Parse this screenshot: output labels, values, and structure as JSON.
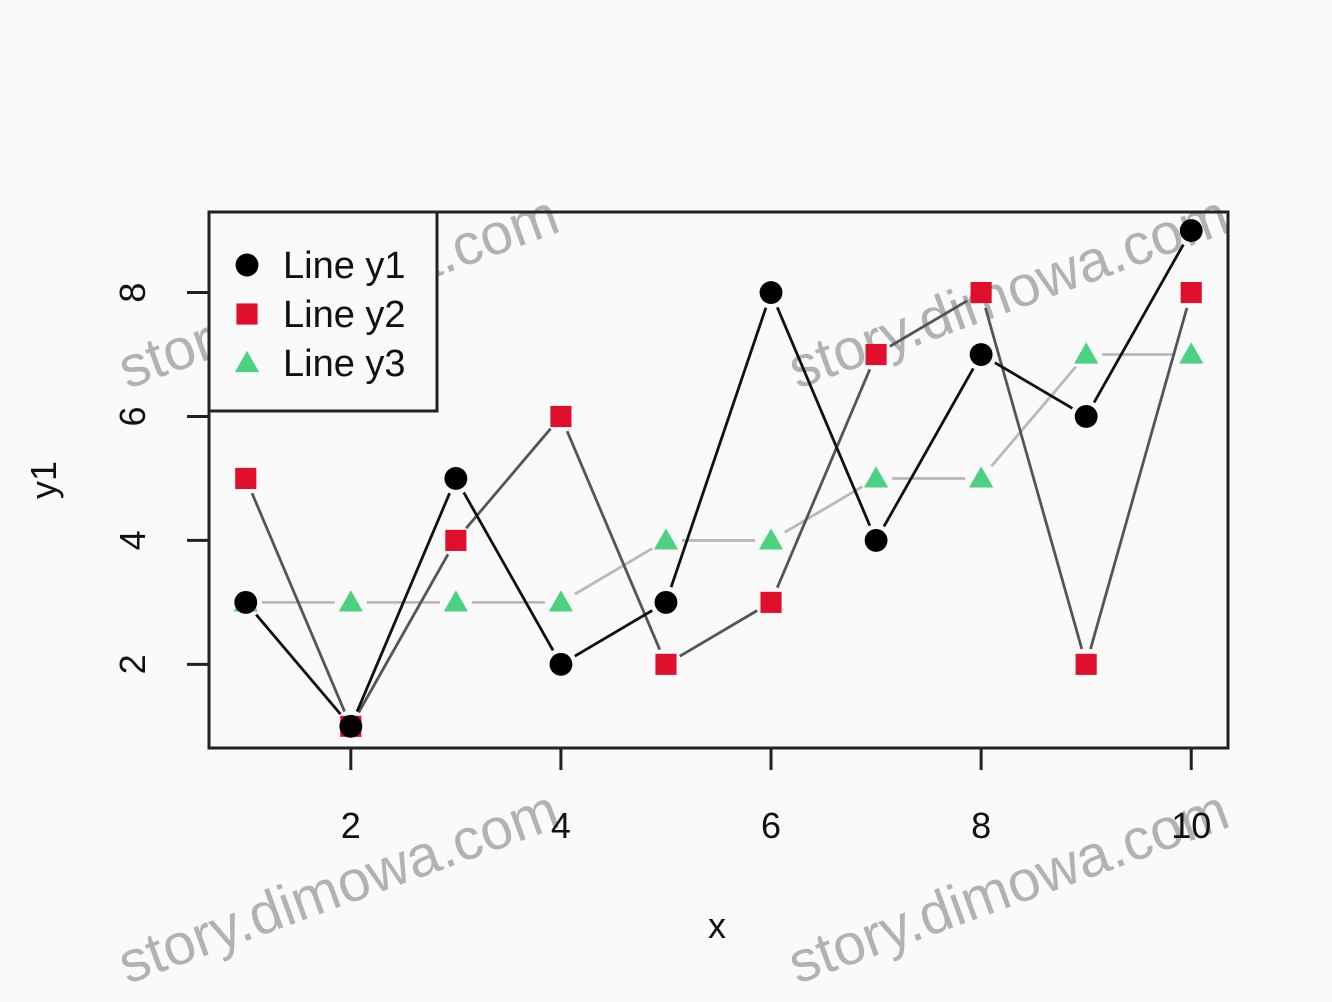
{
  "chart_data": {
    "type": "line",
    "xlabel": "x",
    "ylabel": "y1",
    "x": [
      1,
      2,
      3,
      4,
      5,
      6,
      7,
      8,
      9,
      10
    ],
    "xlim": [
      0.65,
      10.35
    ],
    "ylim": [
      0.65,
      9.3
    ],
    "xticks": [
      "2",
      "4",
      "6",
      "8",
      "10"
    ],
    "yticks": [
      "2",
      "4",
      "6",
      "8"
    ],
    "grid": false,
    "legend_position": "top-left",
    "series": [
      {
        "name": "Line y1",
        "values": [
          3,
          1,
          5,
          2,
          3,
          8,
          4,
          7,
          6,
          9
        ],
        "color": "#000000",
        "marker": "circle"
      },
      {
        "name": "Line y2",
        "values": [
          5,
          1,
          4,
          6,
          2,
          3,
          7,
          8,
          2,
          8
        ],
        "color": "#e0102d",
        "marker": "square"
      },
      {
        "name": "Line y3",
        "values": [
          3,
          3,
          3,
          3,
          4,
          4,
          5,
          5,
          7,
          7
        ],
        "color": "#4bd17f",
        "marker": "triangle"
      }
    ]
  },
  "watermark": {
    "text": "story.dimowa.com"
  }
}
